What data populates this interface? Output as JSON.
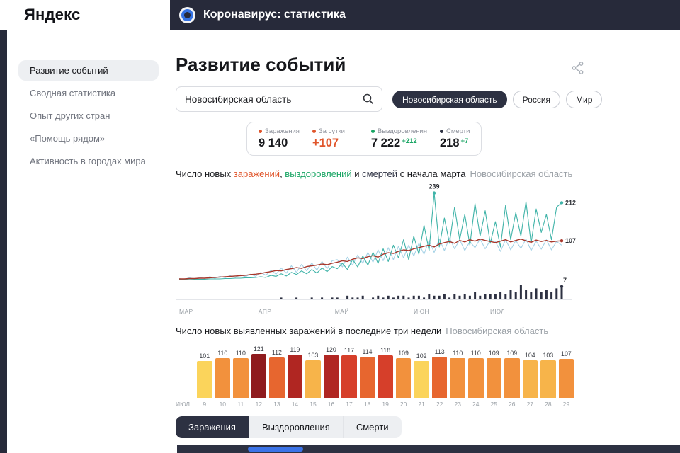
{
  "header": {
    "logo": "Яндекс",
    "app_title": "Коронавирус: статистика"
  },
  "sidebar": {
    "items": [
      {
        "label": "Развитие событий",
        "active": true
      },
      {
        "label": "Сводная статистика",
        "active": false
      },
      {
        "label": "Опыт других стран",
        "active": false
      },
      {
        "label": "«Помощь рядом»",
        "active": false
      },
      {
        "label": "Активность в городах мира",
        "active": false
      }
    ]
  },
  "main": {
    "page_title": "Развитие событий",
    "search": {
      "value": "Новосибирская область"
    },
    "chips": [
      {
        "label": "Новосибирская область",
        "active": true
      },
      {
        "label": "Россия",
        "active": false
      },
      {
        "label": "Мир",
        "active": false
      }
    ],
    "stats": [
      {
        "label": "Заражения",
        "value": "9 140",
        "dot": "#e0552b",
        "value_color": "#16171b",
        "delta": "",
        "delta_color": "",
        "divider": false
      },
      {
        "label": "За сутки",
        "value": "+107",
        "dot": "#e0552b",
        "value_color": "#e0552b",
        "delta": "",
        "delta_color": "",
        "divider": false
      },
      {
        "label": "Выздоровления",
        "value": "7 222",
        "dot": "#19a564",
        "value_color": "#16171b",
        "delta": "+212",
        "delta_color": "#19a564",
        "divider": true
      },
      {
        "label": "Смерти",
        "value": "218",
        "dot": "#2d3142",
        "value_color": "#16171b",
        "delta": "+7",
        "delta_color": "#19a564",
        "divider": false
      }
    ],
    "tabs": [
      {
        "label": "Заражения",
        "active": true
      },
      {
        "label": "Выздоровления",
        "active": false
      },
      {
        "label": "Смерти",
        "active": false
      }
    ]
  },
  "chart_data": [
    {
      "type": "line",
      "title_parts": [
        {
          "text": "Число новых ",
          "color": "#16171b"
        },
        {
          "text": "заражений",
          "color": "#e0552b"
        },
        {
          "text": ", ",
          "color": "#16171b"
        },
        {
          "text": "выздоровлений",
          "color": "#19a564"
        },
        {
          "text": " и ",
          "color": "#16171b"
        },
        {
          "text": "смертей",
          "color": "#2d3142"
        },
        {
          "text": " с начала марта",
          "color": "#16171b"
        }
      ],
      "region": "Новосибирская область",
      "x_axis": {
        "labels": [
          "МАР",
          "АПР",
          "МАЙ",
          "ИЮН",
          "ИЮЛ"
        ],
        "positions": [
          0,
          0.207,
          0.407,
          0.613,
          0.813
        ]
      },
      "ylim": [
        0,
        250
      ],
      "series": [
        {
          "name": "заражения",
          "color": "#a8372b",
          "values": [
            2,
            2,
            3,
            3,
            4,
            4,
            5,
            6,
            7,
            8,
            9,
            10,
            11,
            12,
            14,
            15,
            17,
            20,
            22,
            25,
            24,
            28,
            30,
            33,
            31,
            36,
            38,
            40,
            43,
            41,
            45,
            48,
            52,
            50,
            56,
            60,
            58,
            63,
            66,
            62,
            70,
            74,
            72,
            78,
            82,
            80,
            85,
            88,
            92,
            95,
            90,
            98,
            102,
            105,
            100,
            108,
            104,
            110,
            106,
            112,
            108,
            105,
            102,
            106,
            110,
            104,
            108,
            112,
            107,
            103,
            109,
            105,
            108,
            104,
            106,
            107
          ]
        },
        {
          "name": "выздоровления",
          "color": "#3fb3a8",
          "values": [
            0,
            0,
            0,
            1,
            1,
            1,
            2,
            2,
            2,
            3,
            3,
            4,
            4,
            5,
            5,
            6,
            8,
            6,
            12,
            9,
            16,
            10,
            20,
            14,
            24,
            16,
            28,
            18,
            32,
            22,
            36,
            30,
            45,
            28,
            55,
            35,
            65,
            40,
            75,
            45,
            85,
            50,
            95,
            60,
            110,
            55,
            120,
            70,
            150,
            80,
            239,
            90,
            170,
            100,
            200,
            110,
            180,
            95,
            210,
            120,
            190,
            100,
            160,
            90,
            205,
            110,
            185,
            120,
            215,
            100,
            195,
            130,
            180,
            110,
            200,
            212
          ]
        },
        {
          "name": "заражения-дневные",
          "color": "#a5d2e6",
          "values": [
            3,
            1,
            5,
            2,
            6,
            3,
            8,
            4,
            9,
            5,
            11,
            6,
            13,
            8,
            15,
            9,
            20,
            12,
            26,
            15,
            32,
            18,
            38,
            20,
            42,
            24,
            46,
            26,
            50,
            30,
            52,
            55,
            35,
            62,
            40,
            68,
            45,
            75,
            48,
            82,
            52,
            88,
            55,
            92,
            60,
            95,
            65,
            100,
            70,
            108,
            75,
            112,
            80,
            115,
            85,
            110,
            80,
            105,
            88,
            112,
            85,
            108,
            105,
            78,
            110,
            82,
            108,
            86,
            112,
            80,
            106,
            84,
            110,
            82,
            105,
            95
          ]
        }
      ],
      "bars": {
        "name": "смерти",
        "color": "#2d3142",
        "max": 10,
        "values": [
          0,
          0,
          0,
          0,
          0,
          0,
          0,
          0,
          0,
          0,
          0,
          0,
          0,
          0,
          0,
          0,
          0,
          0,
          0,
          0,
          1,
          0,
          0,
          1,
          0,
          0,
          1,
          0,
          1,
          0,
          1,
          1,
          0,
          2,
          1,
          1,
          2,
          0,
          1,
          2,
          1,
          2,
          1,
          2,
          2,
          1,
          2,
          2,
          1,
          3,
          2,
          2,
          3,
          1,
          3,
          2,
          3,
          2,
          4,
          2,
          3,
          3,
          3,
          4,
          3,
          5,
          4,
          8,
          5,
          4,
          6,
          4,
          5,
          4,
          6,
          7
        ]
      },
      "annotations": [
        {
          "target": "series1",
          "point": "max",
          "label": "239"
        },
        {
          "target": "series1",
          "point": "last",
          "label": "212"
        },
        {
          "target": "series0",
          "point": "last",
          "label": "107"
        },
        {
          "target": "bars",
          "point": "last",
          "label": "7"
        }
      ]
    },
    {
      "type": "bar",
      "title": "Число новых выявленных заражений в последние три недели",
      "region": "Новосибирская область",
      "month_label": "ИЮЛ",
      "categories": [
        "9",
        "10",
        "11",
        "12",
        "13",
        "14",
        "15",
        "16",
        "17",
        "18",
        "19",
        "20",
        "21",
        "22",
        "23",
        "24",
        "25",
        "26",
        "27",
        "28",
        "29"
      ],
      "values": [
        101,
        110,
        110,
        121,
        112,
        119,
        103,
        120,
        117,
        114,
        118,
        109,
        102,
        113,
        110,
        110,
        109,
        109,
        104,
        103,
        107
      ],
      "ylim": [
        0,
        121
      ],
      "color_scale": [
        {
          "max": 102,
          "color": "#fbd45b"
        },
        {
          "max": 106,
          "color": "#f7b44a"
        },
        {
          "max": 110,
          "color": "#f2913d"
        },
        {
          "max": 114,
          "color": "#e7662f"
        },
        {
          "max": 118,
          "color": "#d63f2a"
        },
        {
          "max": 120,
          "color": "#b02622"
        },
        {
          "max": 999,
          "color": "#8f1b1e"
        }
      ]
    }
  ]
}
